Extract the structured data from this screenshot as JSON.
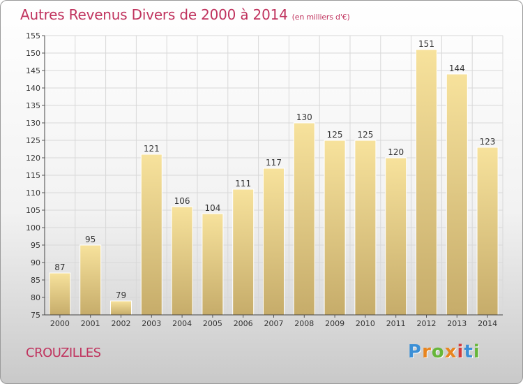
{
  "header": {
    "title": "Autres Revenus Divers de 2000 à 2014",
    "subtitle": "(en milliers d'€)"
  },
  "footer": {
    "place": "CROUZILLES",
    "logo_letters": [
      "P",
      "r",
      "o",
      "x",
      "i",
      "t",
      "i"
    ],
    "logo_colors": [
      "#3b8fd6",
      "#e8851f",
      "#67b63a",
      "#e8851f",
      "#d23b3b",
      "#3b8fd6",
      "#67b63a"
    ]
  },
  "colors": {
    "title": "#c0335e",
    "bar_light": "#f7e29c",
    "bar_dark": "#c6ac6a",
    "grid": "#d8d8d8"
  },
  "chart_data": {
    "type": "bar",
    "categories": [
      "2000",
      "2001",
      "2002",
      "2003",
      "2004",
      "2005",
      "2006",
      "2007",
      "2008",
      "2009",
      "2010",
      "2011",
      "2012",
      "2013",
      "2014"
    ],
    "values": [
      87,
      95,
      79,
      121,
      106,
      104,
      111,
      117,
      130,
      125,
      125,
      120,
      151,
      144,
      123
    ],
    "yticks": [
      75,
      80,
      85,
      90,
      95,
      100,
      105,
      110,
      115,
      120,
      125,
      130,
      135,
      140,
      145,
      150,
      155
    ],
    "ylim": [
      75,
      155
    ],
    "grid": true
  }
}
